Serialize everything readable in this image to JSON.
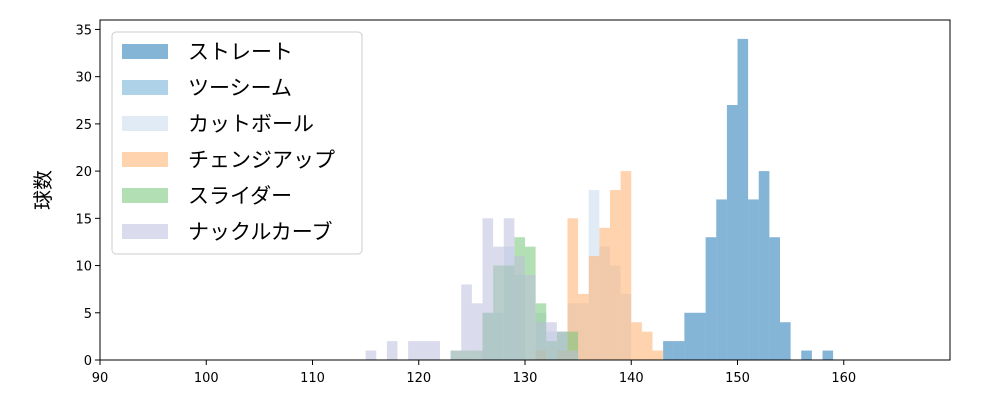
{
  "chart_data": {
    "type": "histogram",
    "xlabel": "",
    "ylabel": "球数",
    "xlim": [
      90,
      170
    ],
    "ylim": [
      0,
      36
    ],
    "xticks": [
      90,
      100,
      110,
      120,
      130,
      140,
      150,
      160
    ],
    "yticks": [
      0,
      5,
      10,
      15,
      20,
      25,
      30,
      35
    ],
    "grid": false,
    "legend_position": "top-left",
    "bin_width": 1.0,
    "series": [
      {
        "name": "ストレート",
        "color": "#1f77b4",
        "bins": [
          [
            143,
            2
          ],
          [
            144,
            2
          ],
          [
            145,
            5
          ],
          [
            146,
            5
          ],
          [
            147,
            13
          ],
          [
            148,
            17
          ],
          [
            149,
            27
          ],
          [
            150,
            34
          ],
          [
            151,
            17
          ],
          [
            152,
            20
          ],
          [
            153,
            13
          ],
          [
            154,
            4
          ],
          [
            156,
            1
          ],
          [
            158,
            1
          ]
        ]
      },
      {
        "name": "ツーシーム",
        "color": "#6baed6",
        "bins": []
      },
      {
        "name": "カットボール",
        "color": "#c6dbef",
        "bins": [
          [
            126,
            5
          ],
          [
            127,
            5
          ],
          [
            128,
            12
          ],
          [
            129,
            9
          ],
          [
            131,
            5
          ],
          [
            132,
            3
          ],
          [
            133,
            3
          ],
          [
            134,
            6
          ],
          [
            135,
            6
          ],
          [
            136,
            18
          ],
          [
            137,
            12
          ],
          [
            138,
            10
          ],
          [
            139,
            7
          ]
        ]
      },
      {
        "name": "チェンジアップ",
        "color": "#fdae6b",
        "bins": [
          [
            131,
            1
          ],
          [
            133,
            1
          ],
          [
            134,
            15
          ],
          [
            135,
            7
          ],
          [
            136,
            11
          ],
          [
            137,
            14
          ],
          [
            138,
            18
          ],
          [
            139,
            20
          ],
          [
            140,
            4
          ],
          [
            141,
            3
          ],
          [
            142,
            1
          ]
        ]
      },
      {
        "name": "スライダー",
        "color": "#74c476",
        "bins": [
          [
            123,
            1
          ],
          [
            124,
            1
          ],
          [
            125,
            1
          ],
          [
            126,
            5
          ],
          [
            127,
            10
          ],
          [
            128,
            10
          ],
          [
            129,
            13
          ],
          [
            130,
            12
          ],
          [
            131,
            6
          ],
          [
            132,
            2
          ],
          [
            133,
            3
          ],
          [
            134,
            3
          ]
        ]
      },
      {
        "name": "ナックルカーブ",
        "color": "#bcbddc",
        "bins": [
          [
            115,
            1
          ],
          [
            117,
            2
          ],
          [
            118,
            0
          ],
          [
            119,
            2
          ],
          [
            120,
            2
          ],
          [
            121,
            2
          ],
          [
            123,
            1
          ],
          [
            124,
            8
          ],
          [
            125,
            6
          ],
          [
            126,
            15
          ],
          [
            127,
            12
          ],
          [
            128,
            15
          ],
          [
            129,
            11
          ],
          [
            130,
            9
          ],
          [
            131,
            4
          ],
          [
            132,
            4
          ],
          [
            133,
            3
          ],
          [
            134,
            1
          ]
        ]
      }
    ]
  }
}
